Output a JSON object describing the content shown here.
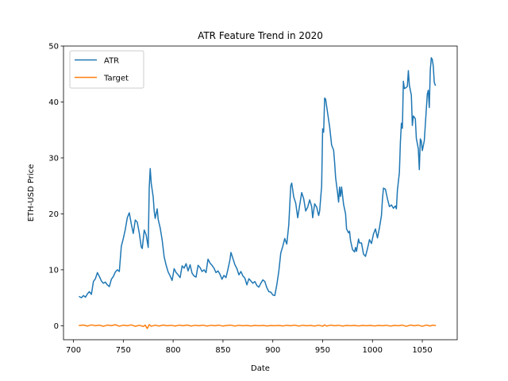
{
  "chart_data": {
    "type": "line",
    "title": "ATR Feature Trend in 2020",
    "xlabel": "Date",
    "ylabel": "ETH-USD Price",
    "xlim": [
      690,
      1085
    ],
    "ylim": [
      -2.5,
      50
    ],
    "xticks": [
      700,
      750,
      800,
      850,
      900,
      950,
      1000,
      1050
    ],
    "yticks": [
      0,
      10,
      20,
      30,
      40,
      50
    ],
    "grid": false,
    "legend_position": "upper-left",
    "series": [
      {
        "name": "ATR",
        "color": "#1f77b4",
        "points": [
          [
            706,
            5.2
          ],
          [
            708,
            5.0
          ],
          [
            710,
            5.4
          ],
          [
            712,
            5.1
          ],
          [
            714,
            5.7
          ],
          [
            716,
            6.1
          ],
          [
            718,
            5.6
          ],
          [
            720,
            7.9
          ],
          [
            722,
            8.4
          ],
          [
            724,
            9.5
          ],
          [
            726,
            8.8
          ],
          [
            728,
            8.0
          ],
          [
            730,
            7.6
          ],
          [
            732,
            7.8
          ],
          [
            734,
            7.3
          ],
          [
            736,
            7.0
          ],
          [
            738,
            8.3
          ],
          [
            740,
            8.8
          ],
          [
            742,
            9.6
          ],
          [
            744,
            10.0
          ],
          [
            746,
            9.7
          ],
          [
            748,
            14.2
          ],
          [
            750,
            15.6
          ],
          [
            752,
            17.2
          ],
          [
            754,
            19.3
          ],
          [
            756,
            20.2
          ],
          [
            758,
            18.2
          ],
          [
            760,
            16.5
          ],
          [
            762,
            18.9
          ],
          [
            764,
            18.5
          ],
          [
            766,
            16.6
          ],
          [
            768,
            14.1
          ],
          [
            769,
            13.8
          ],
          [
            771,
            17.1
          ],
          [
            773,
            16.2
          ],
          [
            775,
            14.0
          ],
          [
            776,
            24.6
          ],
          [
            777,
            28.1
          ],
          [
            778,
            25.5
          ],
          [
            780,
            23.0
          ],
          [
            781,
            20.5
          ],
          [
            782,
            19.2
          ],
          [
            784,
            20.9
          ],
          [
            785,
            19.0
          ],
          [
            787,
            17.5
          ],
          [
            789,
            15.3
          ],
          [
            791,
            12.3
          ],
          [
            793,
            10.8
          ],
          [
            795,
            9.6
          ],
          [
            797,
            8.9
          ],
          [
            799,
            8.1
          ],
          [
            801,
            10.2
          ],
          [
            803,
            9.5
          ],
          [
            805,
            9.1
          ],
          [
            807,
            8.6
          ],
          [
            809,
            10.7
          ],
          [
            811,
            10.3
          ],
          [
            813,
            11.1
          ],
          [
            815,
            9.8
          ],
          [
            817,
            10.9
          ],
          [
            819,
            9.4
          ],
          [
            821,
            8.9
          ],
          [
            823,
            8.7
          ],
          [
            825,
            10.8
          ],
          [
            827,
            10.4
          ],
          [
            829,
            9.7
          ],
          [
            831,
            10.0
          ],
          [
            833,
            9.5
          ],
          [
            835,
            11.9
          ],
          [
            837,
            11.2
          ],
          [
            839,
            10.8
          ],
          [
            841,
            10.3
          ],
          [
            843,
            9.5
          ],
          [
            845,
            9.8
          ],
          [
            847,
            9.2
          ],
          [
            849,
            8.3
          ],
          [
            851,
            9.0
          ],
          [
            853,
            8.6
          ],
          [
            855,
            10.1
          ],
          [
            857,
            11.8
          ],
          [
            858,
            13.1
          ],
          [
            860,
            12.0
          ],
          [
            862,
            10.9
          ],
          [
            864,
            10.2
          ],
          [
            866,
            9.1
          ],
          [
            868,
            9.7
          ],
          [
            870,
            8.9
          ],
          [
            872,
            8.5
          ],
          [
            874,
            7.3
          ],
          [
            876,
            8.4
          ],
          [
            878,
            8.0
          ],
          [
            880,
            7.6
          ],
          [
            882,
            7.9
          ],
          [
            884,
            7.2
          ],
          [
            886,
            6.9
          ],
          [
            888,
            7.6
          ],
          [
            890,
            8.2
          ],
          [
            892,
            7.9
          ],
          [
            894,
            6.8
          ],
          [
            896,
            6.1
          ],
          [
            898,
            6.0
          ],
          [
            900,
            5.5
          ],
          [
            902,
            5.4
          ],
          [
            904,
            7.3
          ],
          [
            906,
            9.7
          ],
          [
            908,
            13.0
          ],
          [
            910,
            14.2
          ],
          [
            912,
            15.6
          ],
          [
            914,
            14.6
          ],
          [
            916,
            18.0
          ],
          [
            918,
            25.0
          ],
          [
            919,
            25.5
          ],
          [
            921,
            23.0
          ],
          [
            923,
            21.9
          ],
          [
            925,
            19.3
          ],
          [
            927,
            21.6
          ],
          [
            929,
            23.8
          ],
          [
            931,
            22.7
          ],
          [
            933,
            20.5
          ],
          [
            935,
            21.2
          ],
          [
            937,
            22.5
          ],
          [
            939,
            21.3
          ],
          [
            940,
            19.3
          ],
          [
            942,
            21.8
          ],
          [
            944,
            21.2
          ],
          [
            946,
            19.7
          ],
          [
            947,
            20.5
          ],
          [
            949,
            25.0
          ],
          [
            950,
            35.2
          ],
          [
            951,
            34.6
          ],
          [
            952,
            40.7
          ],
          [
            953,
            40.5
          ],
          [
            955,
            38.0
          ],
          [
            957,
            35.6
          ],
          [
            959,
            32.3
          ],
          [
            961,
            31.4
          ],
          [
            962,
            29.2
          ],
          [
            963,
            26.5
          ],
          [
            965,
            23.7
          ],
          [
            966,
            22.1
          ],
          [
            967,
            24.8
          ],
          [
            968,
            23.1
          ],
          [
            969,
            24.8
          ],
          [
            971,
            21.7
          ],
          [
            973,
            20.0
          ],
          [
            974,
            17.3
          ],
          [
            976,
            16.6
          ],
          [
            977,
            16.9
          ],
          [
            978,
            15.2
          ],
          [
            980,
            13.6
          ],
          [
            982,
            13.2
          ],
          [
            983,
            14.0
          ],
          [
            984,
            13.3
          ],
          [
            986,
            15.5
          ],
          [
            987,
            14.8
          ],
          [
            989,
            14.8
          ],
          [
            991,
            12.8
          ],
          [
            993,
            12.4
          ],
          [
            995,
            13.8
          ],
          [
            997,
            15.4
          ],
          [
            999,
            14.7
          ],
          [
            1001,
            16.4
          ],
          [
            1003,
            17.3
          ],
          [
            1005,
            15.7
          ],
          [
            1007,
            17.5
          ],
          [
            1009,
            19.7
          ],
          [
            1010,
            22.6
          ],
          [
            1011,
            24.6
          ],
          [
            1013,
            24.4
          ],
          [
            1015,
            22.7
          ],
          [
            1017,
            21.3
          ],
          [
            1019,
            21.6
          ],
          [
            1021,
            21.0
          ],
          [
            1023,
            21.4
          ],
          [
            1024,
            20.9
          ],
          [
            1025,
            24.2
          ],
          [
            1027,
            27.4
          ],
          [
            1028,
            32.8
          ],
          [
            1029,
            36.2
          ],
          [
            1030,
            35.3
          ],
          [
            1031,
            43.7
          ],
          [
            1032,
            42.4
          ],
          [
            1034,
            42.6
          ],
          [
            1035,
            42.8
          ],
          [
            1036,
            45.6
          ],
          [
            1037,
            43.0
          ],
          [
            1039,
            41.2
          ],
          [
            1040,
            35.8
          ],
          [
            1041,
            37.5
          ],
          [
            1043,
            37.0
          ],
          [
            1044,
            33.5
          ],
          [
            1046,
            31.6
          ],
          [
            1047,
            27.9
          ],
          [
            1048,
            33.4
          ],
          [
            1049,
            33.0
          ],
          [
            1050,
            31.3
          ],
          [
            1052,
            33.1
          ],
          [
            1053,
            35.9
          ],
          [
            1055,
            41.4
          ],
          [
            1056,
            42.1
          ],
          [
            1057,
            39.0
          ],
          [
            1058,
            45.7
          ],
          [
            1059,
            47.9
          ],
          [
            1060,
            47.6
          ],
          [
            1061,
            46.4
          ],
          [
            1062,
            43.5
          ],
          [
            1063,
            43.0
          ]
        ]
      },
      {
        "name": "Target",
        "color": "#ff7f0e",
        "points": [
          [
            706,
            0.05
          ],
          [
            710,
            0.12
          ],
          [
            714,
            -0.05
          ],
          [
            718,
            0.15
          ],
          [
            722,
            0.0
          ],
          [
            726,
            0.1
          ],
          [
            730,
            -0.1
          ],
          [
            734,
            0.12
          ],
          [
            738,
            0.02
          ],
          [
            742,
            0.18
          ],
          [
            746,
            -0.08
          ],
          [
            750,
            0.1
          ],
          [
            754,
            0.0
          ],
          [
            758,
            0.15
          ],
          [
            762,
            -0.1
          ],
          [
            766,
            0.08
          ],
          [
            770,
            -0.12
          ],
          [
            772,
            0.1
          ],
          [
            774,
            -0.5
          ],
          [
            776,
            0.2
          ],
          [
            778,
            -0.1
          ],
          [
            782,
            0.1
          ],
          [
            786,
            -0.05
          ],
          [
            790,
            0.12
          ],
          [
            794,
            0.0
          ],
          [
            798,
            0.08
          ],
          [
            802,
            -0.05
          ],
          [
            806,
            0.1
          ],
          [
            810,
            0.0
          ],
          [
            814,
            0.12
          ],
          [
            818,
            -0.05
          ],
          [
            822,
            0.08
          ],
          [
            826,
            0.0
          ],
          [
            830,
            0.1
          ],
          [
            834,
            -0.05
          ],
          [
            838,
            0.08
          ],
          [
            842,
            0.0
          ],
          [
            846,
            0.1
          ],
          [
            850,
            -0.06
          ],
          [
            854,
            0.05
          ],
          [
            858,
            0.1
          ],
          [
            862,
            -0.05
          ],
          [
            866,
            0.08
          ],
          [
            870,
            0.0
          ],
          [
            874,
            0.06
          ],
          [
            878,
            -0.04
          ],
          [
            882,
            0.05
          ],
          [
            886,
            0.0
          ],
          [
            890,
            0.06
          ],
          [
            894,
            -0.03
          ],
          [
            898,
            0.04
          ],
          [
            902,
            0.0
          ],
          [
            906,
            0.06
          ],
          [
            910,
            -0.04
          ],
          [
            914,
            0.08
          ],
          [
            918,
            0.0
          ],
          [
            922,
            0.1
          ],
          [
            926,
            -0.05
          ],
          [
            930,
            0.08
          ],
          [
            934,
            0.0
          ],
          [
            938,
            0.05
          ],
          [
            942,
            -0.05
          ],
          [
            946,
            0.1
          ],
          [
            950,
            -0.08
          ],
          [
            952,
            0.15
          ],
          [
            954,
            -0.05
          ],
          [
            958,
            0.1
          ],
          [
            962,
            0.0
          ],
          [
            966,
            0.08
          ],
          [
            970,
            -0.05
          ],
          [
            974,
            0.06
          ],
          [
            978,
            0.0
          ],
          [
            982,
            0.05
          ],
          [
            986,
            -0.03
          ],
          [
            990,
            0.05
          ],
          [
            994,
            0.0
          ],
          [
            998,
            0.06
          ],
          [
            1002,
            -0.04
          ],
          [
            1006,
            0.05
          ],
          [
            1010,
            0.0
          ],
          [
            1014,
            0.08
          ],
          [
            1018,
            -0.05
          ],
          [
            1022,
            0.06
          ],
          [
            1026,
            0.0
          ],
          [
            1030,
            0.1
          ],
          [
            1034,
            -0.1
          ],
          [
            1038,
            0.12
          ],
          [
            1042,
            0.0
          ],
          [
            1046,
            0.1
          ],
          [
            1050,
            -0.1
          ],
          [
            1054,
            0.12
          ],
          [
            1058,
            -0.05
          ],
          [
            1060,
            0.1
          ],
          [
            1063,
            0.05
          ]
        ]
      }
    ]
  }
}
